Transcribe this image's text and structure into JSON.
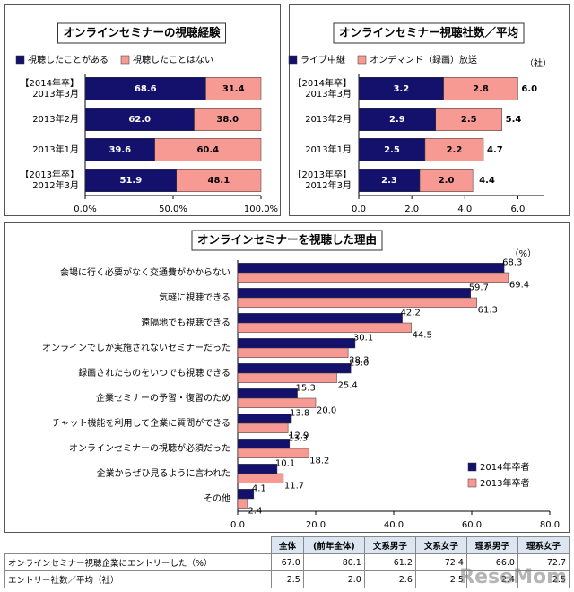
{
  "chart_data": [
    {
      "type": "stacked-hbar",
      "title": "オンラインセミナーの視聴経験",
      "categories": [
        "【2014年卒】\n2013年3月",
        "2013年2月",
        "2013年1月",
        "【2013年卒】\n2012年3月"
      ],
      "series": [
        {
          "name": "視聴したことがある",
          "color": "#13116b",
          "values": [
            68.6,
            62.0,
            39.6,
            51.9
          ],
          "value_labels": [
            "68.6",
            "62.0",
            "39.6",
            "51.9"
          ]
        },
        {
          "name": "視聴したことはない",
          "color": "#f79a94",
          "values": [
            31.4,
            38.0,
            60.4,
            48.1
          ],
          "value_labels": [
            "31.4",
            "38.0",
            "60.4",
            "48.1"
          ]
        }
      ],
      "xlim": [
        0,
        100
      ],
      "xticks": [
        {
          "value": 0,
          "label": "0.0%"
        },
        {
          "value": 50,
          "label": "50.0%"
        },
        {
          "value": 100,
          "label": "100.0%"
        }
      ],
      "legend": "top"
    },
    {
      "type": "stacked-hbar",
      "title": "オンラインセミナー視聴社数／平均",
      "unit": "（社）",
      "categories": [
        "【2014年卒】\n2013年3月",
        "2013年2月",
        "2013年1月",
        "【2013年卒】\n2012年3月"
      ],
      "series": [
        {
          "name": "ライブ中継",
          "color": "#13116b",
          "values": [
            3.2,
            2.9,
            2.5,
            2.3
          ]
        },
        {
          "name": "オンデマンド（録画）放送",
          "color": "#f79a94",
          "values": [
            2.8,
            2.5,
            2.2,
            2.0
          ],
          "value_labels": [
            "2.8",
            "2.5",
            "2.2",
            "2.0"
          ]
        }
      ],
      "totals": [
        6.0,
        5.4,
        4.7,
        4.4
      ],
      "total_labels": [
        "6.0",
        "5.4",
        "4.7",
        "4.4"
      ],
      "xlim": [
        0,
        7
      ],
      "xticks": [
        {
          "value": 0,
          "label": "0.0"
        },
        {
          "value": 2,
          "label": "2.0"
        },
        {
          "value": 4,
          "label": "4.0"
        },
        {
          "value": 6,
          "label": "6.0"
        }
      ],
      "legend": "top"
    },
    {
      "type": "grouped-hbar",
      "title": "オンラインセミナーを視聴した理由",
      "unit": "（%）",
      "categories": [
        "会場に行く必要がなく交通費がかからない",
        "気軽に視聴できる",
        "遠隔地でも視聴できる",
        "オンラインでしか実施されないセミナーだった",
        "録画されたものをいつでも視聴できる",
        "企業セミナーの予習・復習のため",
        "チャット機能を利用して企業に質問ができる",
        "オンラインセミナーの視聴が必須だった",
        "企業からぜひ見るように言われた",
        "その他"
      ],
      "series": [
        {
          "name": "2014年卒者",
          "color": "#13116b",
          "values": [
            68.3,
            59.7,
            42.2,
            30.1,
            29.0,
            15.3,
            13.8,
            13.3,
            10.1,
            4.1
          ],
          "value_labels": [
            "68.3",
            "59.7",
            "42.2",
            "30.1",
            "29.0",
            "15.3",
            "13.8",
            "13.3",
            "10.1",
            "4.1"
          ]
        },
        {
          "name": "2013年卒者",
          "color": "#f79a94",
          "values": [
            69.4,
            61.3,
            44.5,
            28.3,
            25.4,
            20.0,
            12.9,
            18.2,
            11.7,
            2.4
          ],
          "value_labels": [
            "69.4",
            "61.3",
            "44.5",
            "28.3",
            "25.4",
            "20.0",
            "12.9",
            "18.2",
            "11.7",
            "2.4"
          ]
        }
      ],
      "xlim": [
        0,
        80
      ],
      "xticks": [
        {
          "value": 0,
          "label": "0.0"
        },
        {
          "value": 20,
          "label": "20.0"
        },
        {
          "value": 40,
          "label": "40.0"
        },
        {
          "value": 60,
          "label": "60.0"
        },
        {
          "value": 80,
          "label": "80.0"
        }
      ],
      "legend": "lower right"
    }
  ],
  "table": {
    "header": [
      "全体",
      "(前年全体)",
      "文系男子",
      "文系女子",
      "理系男子",
      "理系女子"
    ],
    "rows": [
      [
        "オンラインセミナー視聴企業にエントリーした（%）",
        "67.0",
        "80.1",
        "61.2",
        "72.4",
        "66.0",
        "72.7"
      ],
      [
        "エントリー社数／平均（社）",
        "2.5",
        "2.0",
        "2.6",
        "2.5",
        "2.4",
        "2.5"
      ]
    ]
  },
  "watermark": "ReseMom"
}
